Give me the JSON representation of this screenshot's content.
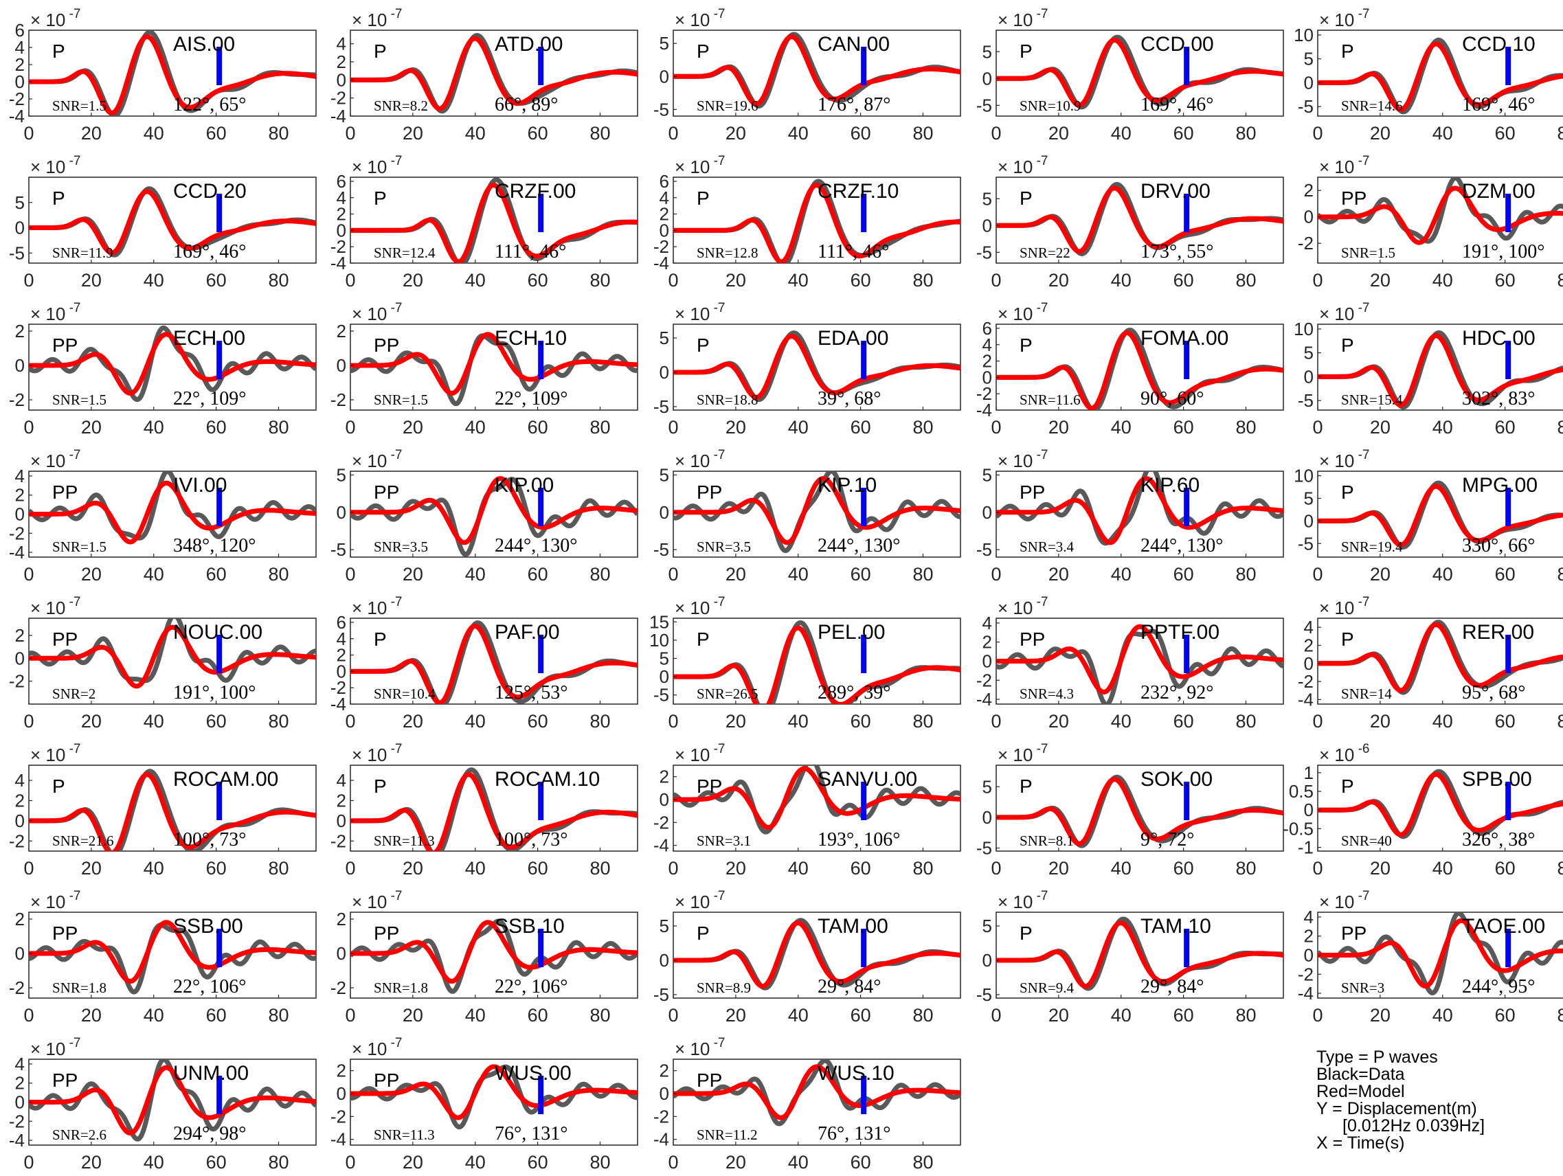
{
  "figure": {
    "colors": {
      "data": "#595959",
      "model": "#ff0000",
      "marker": "#0000ff",
      "axis": "#262626"
    },
    "x_ticks": [
      "0",
      "20",
      "40",
      "60",
      "80"
    ],
    "legend": [
      {
        "text": "Type = P waves",
        "indent": false
      },
      {
        "text": "Black=Data",
        "indent": false
      },
      {
        "text": "Red=Model",
        "indent": false
      },
      {
        "text": "Y = Displacement(m)",
        "indent": false
      },
      {
        "text": "[0.012Hz 0.039Hz]",
        "indent": true
      },
      {
        "text": "X = Time(s)",
        "indent": false
      }
    ]
  },
  "chart_data": {
    "type": "line",
    "xlabel": "Time(s)",
    "ylabel": "Displacement(m)",
    "xlim": [
      0,
      92
    ],
    "xticks": [
      0,
      20,
      40,
      60,
      80
    ],
    "marker_time": 61,
    "panels": [
      {
        "station": "AIS.00",
        "phase": "P",
        "snr": "SNR=1.5",
        "azimuth": "122°, 65°",
        "exponent": "-7",
        "yticks": [
          "6",
          "4",
          "2",
          "0",
          "-2",
          "-4"
        ],
        "ylim": [
          -4,
          6
        ],
        "amp": 5.5,
        "pattern": "p",
        "offset": 0
      },
      {
        "station": "ATD.00",
        "phase": "P",
        "snr": "SNR=8.2",
        "azimuth": "66°, 89°",
        "exponent": "-7",
        "yticks": [
          "4",
          "2",
          "0",
          "-2",
          "-4"
        ],
        "ylim": [
          -4,
          5.5
        ],
        "amp": 4.8,
        "pattern": "p",
        "offset": 2
      },
      {
        "station": "CAN.00",
        "phase": "P",
        "snr": "SNR=19.6",
        "azimuth": "176°, 87°",
        "exponent": "-7",
        "yticks": [
          "5",
          "0",
          "-5"
        ],
        "ylim": [
          -6,
          7
        ],
        "amp": 6.3,
        "pattern": "p",
        "offset": 0
      },
      {
        "station": "CCD.00",
        "phase": "P",
        "snr": "SNR=10.9",
        "azimuth": "169°, 46°",
        "exponent": "-7",
        "yticks": [
          "5",
          "0",
          "-5"
        ],
        "ylim": [
          -7,
          9
        ],
        "amp": 7.5,
        "pattern": "p",
        "offset": 0
      },
      {
        "station": "CCD.10",
        "phase": "P",
        "snr": "SNR=14.6",
        "azimuth": "169°, 46°",
        "exponent": "-7",
        "yticks": [
          "10",
          "5",
          "0",
          "-5"
        ],
        "ylim": [
          -7,
          11
        ],
        "amp": 8.5,
        "pattern": "p",
        "offset": 0
      },
      {
        "station": "CCD.20",
        "phase": "P",
        "snr": "SNR=11.9",
        "azimuth": "169°, 46°",
        "exponent": "-7",
        "yticks": [
          "5",
          "0",
          "-5"
        ],
        "ylim": [
          -7,
          10
        ],
        "amp": 7.5,
        "pattern": "p",
        "offset": 0
      },
      {
        "station": "CRZF.00",
        "phase": "P",
        "snr": "SNR=12.4",
        "azimuth": "111°, 46°",
        "exponent": "-7",
        "yticks": [
          "6",
          "4",
          "2",
          "0",
          "-2",
          "-4"
        ],
        "ylim": [
          -4,
          6.5
        ],
        "amp": 5.8,
        "pattern": "p",
        "offset": 8
      },
      {
        "station": "CRZF.10",
        "phase": "P",
        "snr": "SNR=12.8",
        "azimuth": "111°, 46°",
        "exponent": "-7",
        "yticks": [
          "6",
          "4",
          "2",
          "0",
          "-2",
          "-4"
        ],
        "ylim": [
          -4,
          6.5
        ],
        "amp": 5.8,
        "pattern": "p",
        "offset": 8
      },
      {
        "station": "DRV.00",
        "phase": "P",
        "snr": "SNR=22",
        "azimuth": "173°, 55°",
        "exponent": "-7",
        "yticks": [
          "5",
          "0",
          "-5"
        ],
        "ylim": [
          -7,
          9
        ],
        "amp": 7.3,
        "pattern": "p",
        "offset": 0
      },
      {
        "station": "DZM.00",
        "phase": "PP",
        "snr": "SNR=1.5",
        "azimuth": "191°, 100°",
        "exponent": "-7",
        "yticks": [
          "2",
          "0",
          "-2"
        ],
        "ylim": [
          -3.5,
          3
        ],
        "amp": 2.4,
        "pattern": "pp",
        "offset": 0
      },
      {
        "station": "ECH.00",
        "phase": "PP",
        "snr": "SNR=1.5",
        "azimuth": "22°, 109°",
        "exponent": "-7",
        "yticks": [
          "2",
          "0",
          "-2"
        ],
        "ylim": [
          -2.6,
          2.4
        ],
        "amp": 2.0,
        "pattern": "pp",
        "offset": 0
      },
      {
        "station": "ECH.10",
        "phase": "PP",
        "snr": "SNR=1.5",
        "azimuth": "22°, 109°",
        "exponent": "-7",
        "yticks": [
          "2",
          "0",
          "-2"
        ],
        "ylim": [
          -2.6,
          2.4
        ],
        "amp": 2.0,
        "pattern": "pp",
        "offset": 0
      },
      {
        "station": "EDA.00",
        "phase": "P",
        "snr": "SNR=18.8",
        "azimuth": "39°, 68°",
        "exponent": "-7",
        "yticks": [
          "5",
          "0",
          "-5"
        ],
        "ylim": [
          -5.5,
          7
        ],
        "amp": 5.5,
        "pattern": "p",
        "offset": 0
      },
      {
        "station": "FOMA.00",
        "phase": "P",
        "snr": "SNR=11.6",
        "azimuth": "90°, 60°",
        "exponent": "-7",
        "yticks": [
          "6",
          "4",
          "2",
          "0",
          "-2",
          "-4"
        ],
        "ylim": [
          -4,
          6.5
        ],
        "amp": 5.7,
        "pattern": "p",
        "offset": 4
      },
      {
        "station": "HDC.00",
        "phase": "P",
        "snr": "SNR=15.4",
        "azimuth": "302°, 83°",
        "exponent": "-7",
        "yticks": [
          "10",
          "5",
          "0",
          "-5"
        ],
        "ylim": [
          -7,
          11
        ],
        "amp": 9.0,
        "pattern": "p",
        "offset": 0
      },
      {
        "station": "IVI.00",
        "phase": "PP",
        "snr": "SNR=1.5",
        "azimuth": "348°, 120°",
        "exponent": "-7",
        "yticks": [
          "4",
          "2",
          "0",
          "-2",
          "-4"
        ],
        "ylim": [
          -4.5,
          4.5
        ],
        "amp": 3.6,
        "pattern": "pp",
        "offset": 0
      },
      {
        "station": "KIP.00",
        "phase": "PP",
        "snr": "SNR=3.5",
        "azimuth": "244°, 130°",
        "exponent": "-7",
        "yticks": [
          "5",
          "0",
          "-5"
        ],
        "ylim": [
          -6,
          5.5
        ],
        "amp": 5.0,
        "pattern": "pp",
        "offset": 4
      },
      {
        "station": "KIP.10",
        "phase": "PP",
        "snr": "SNR=3.5",
        "azimuth": "244°, 130°",
        "exponent": "-7",
        "yticks": [
          "5",
          "0",
          "-5"
        ],
        "ylim": [
          -6,
          5.5
        ],
        "amp": 5.0,
        "pattern": "pp",
        "offset": 4
      },
      {
        "station": "KIP.60",
        "phase": "PP",
        "snr": "SNR=3.4",
        "azimuth": "244°, 130°",
        "exponent": "-7",
        "yticks": [
          "5",
          "0",
          "-5"
        ],
        "ylim": [
          -6,
          5.5
        ],
        "amp": 5.0,
        "pattern": "pp",
        "offset": 4
      },
      {
        "station": "MPG.00",
        "phase": "P",
        "snr": "SNR=19.4",
        "azimuth": "330°, 66°",
        "exponent": "-7",
        "yticks": [
          "10",
          "5",
          "0",
          "-5"
        ],
        "ylim": [
          -8,
          11
        ],
        "amp": 8.0,
        "pattern": "p",
        "offset": 0
      },
      {
        "station": "NOUC.00",
        "phase": "PP",
        "snr": "SNR=2",
        "azimuth": "191°, 100°",
        "exponent": "-7",
        "yticks": [
          "2",
          "0",
          "-2"
        ],
        "ylim": [
          -4,
          3.5
        ],
        "amp": 3.0,
        "pattern": "pp",
        "offset": 2
      },
      {
        "station": "PAF.00",
        "phase": "P",
        "snr": "SNR=10.4",
        "azimuth": "125°, 53°",
        "exponent": "-7",
        "yticks": [
          "6",
          "4",
          "2",
          "0",
          "-2",
          "-4"
        ],
        "ylim": [
          -4,
          6.5
        ],
        "amp": 5.8,
        "pattern": "p",
        "offset": 2
      },
      {
        "station": "PEL.00",
        "phase": "P",
        "snr": "SNR=26.5",
        "azimuth": "289°, 39°",
        "exponent": "-7",
        "yticks": [
          "15",
          "10",
          "5",
          "0",
          "-5"
        ],
        "ylim": [
          -7.5,
          16
        ],
        "amp": 14.0,
        "pattern": "p",
        "offset": 2
      },
      {
        "station": "PPTF.00",
        "phase": "PP",
        "snr": "SNR=4.3",
        "azimuth": "232°, 92°",
        "exponent": "-7",
        "yticks": [
          "4",
          "2",
          "0",
          "-2",
          "-4"
        ],
        "ylim": [
          -4.5,
          4.5
        ],
        "amp": 4.0,
        "pattern": "pp",
        "offset": 2
      },
      {
        "station": "RER.00",
        "phase": "P",
        "snr": "SNR=14",
        "azimuth": "95°, 68°",
        "exponent": "-7",
        "yticks": [
          "4",
          "2",
          "0",
          "-2",
          "-4"
        ],
        "ylim": [
          -4.5,
          5
        ],
        "amp": 4.5,
        "pattern": "p",
        "offset": 0
      },
      {
        "station": "ROCAM.00",
        "phase": "P",
        "snr": "SNR=21.6",
        "azimuth": "100°, 73°",
        "exponent": "-7",
        "yticks": [
          "4",
          "2",
          "0",
          "-2"
        ],
        "ylim": [
          -3,
          5.5
        ],
        "amp": 4.8,
        "pattern": "p",
        "offset": 0
      },
      {
        "station": "ROCAM.10",
        "phase": "P",
        "snr": "SNR=11.3",
        "azimuth": "100°, 73°",
        "exponent": "-7",
        "yticks": [
          "4",
          "2",
          "0",
          "-2"
        ],
        "ylim": [
          -3,
          5.5
        ],
        "amp": 4.8,
        "pattern": "p",
        "offset": 0
      },
      {
        "station": "SANVU.00",
        "phase": "PP",
        "snr": "SNR=3.1",
        "azimuth": "193°, 106°",
        "exponent": "-7",
        "yticks": [
          "2",
          "0",
          "-2",
          "-4"
        ],
        "ylim": [
          -4.5,
          3
        ],
        "amp": 3.0,
        "pattern": "pp",
        "offset": -2
      },
      {
        "station": "SOK.00",
        "phase": "P",
        "snr": "SNR=8.1",
        "azimuth": "9°, 72°",
        "exponent": "-7",
        "yticks": [
          "5",
          "0",
          "-5"
        ],
        "ylim": [
          -5.5,
          8.5
        ],
        "amp": 6.5,
        "pattern": "p",
        "offset": 0
      },
      {
        "station": "SPB.00",
        "phase": "P",
        "snr": "SNR=40",
        "azimuth": "326°, 38°",
        "exponent": "-6",
        "yticks": [
          "1",
          "0.5",
          "0",
          "-0.5",
          "-1"
        ],
        "ylim": [
          -1.1,
          1.2
        ],
        "amp": 1.0,
        "pattern": "p",
        "offset": 0
      },
      {
        "station": "SSB.00",
        "phase": "PP",
        "snr": "SNR=1.8",
        "azimuth": "22°, 106°",
        "exponent": "-7",
        "yticks": [
          "2",
          "0",
          "-2"
        ],
        "ylim": [
          -2.6,
          2.4
        ],
        "amp": 2.0,
        "pattern": "pp",
        "offset": 0
      },
      {
        "station": "SSB.10",
        "phase": "PP",
        "snr": "SNR=1.8",
        "azimuth": "22°, 106°",
        "exponent": "-7",
        "yticks": [
          "2",
          "0",
          "-2"
        ],
        "ylim": [
          -2.6,
          2.4
        ],
        "amp": 2.0,
        "pattern": "pp",
        "offset": 0
      },
      {
        "station": "TAM.00",
        "phase": "P",
        "snr": "SNR=8.9",
        "azimuth": "29°, 84°",
        "exponent": "-7",
        "yticks": [
          "5",
          "0",
          "-5"
        ],
        "ylim": [
          -5.5,
          7
        ],
        "amp": 5.7,
        "pattern": "p",
        "offset": 2
      },
      {
        "station": "TAM.10",
        "phase": "P",
        "snr": "SNR=9.4",
        "azimuth": "29°, 84°",
        "exponent": "-7",
        "yticks": [
          "5",
          "0",
          "-5"
        ],
        "ylim": [
          -5.5,
          7
        ],
        "amp": 5.7,
        "pattern": "p",
        "offset": 2
      },
      {
        "station": "TAOE.00",
        "phase": "PP",
        "snr": "SNR=3",
        "azimuth": "244°, 95°",
        "exponent": "-7",
        "yticks": [
          "4",
          "2",
          "0",
          "-2",
          "-4"
        ],
        "ylim": [
          -4.5,
          4.5
        ],
        "amp": 4.0,
        "pattern": "pp",
        "offset": 2
      },
      {
        "station": "UNM.00",
        "phase": "PP",
        "snr": "SNR=2.6",
        "azimuth": "294°, 98°",
        "exponent": "-7",
        "yticks": [
          "4",
          "2",
          "0",
          "-2",
          "-4"
        ],
        "ylim": [
          -4.5,
          4.5
        ],
        "amp": 4.0,
        "pattern": "pp",
        "offset": 0
      },
      {
        "station": "WUS.00",
        "phase": "PP",
        "snr": "SNR=11.3",
        "azimuth": "76°, 131°",
        "exponent": "-7",
        "yticks": [
          "2",
          "0",
          "-2",
          "-4"
        ],
        "ylim": [
          -4.5,
          3
        ],
        "amp": 2.6,
        "pattern": "pp",
        "offset": 2
      },
      {
        "station": "WUS.10",
        "phase": "PP",
        "snr": "SNR=11.2",
        "azimuth": "76°, 131°",
        "exponent": "-7",
        "yticks": [
          "2",
          "0",
          "-2",
          "-4"
        ],
        "ylim": [
          -4.5,
          3
        ],
        "amp": 2.6,
        "pattern": "pp",
        "offset": 2
      }
    ]
  }
}
